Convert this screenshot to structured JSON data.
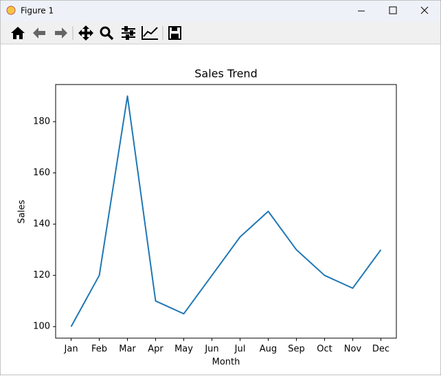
{
  "window": {
    "title": "Figure 1"
  },
  "chart_data": {
    "type": "line",
    "title": "Sales Trend",
    "x_label": "Month",
    "y_label": "Sales",
    "categories": [
      "Jan",
      "Feb",
      "Mar",
      "Apr",
      "May",
      "Jun",
      "Jul",
      "Aug",
      "Sep",
      "Oct",
      "Nov",
      "Dec"
    ],
    "values": [
      100,
      120,
      190,
      110,
      105,
      120,
      135,
      145,
      130,
      120,
      115,
      130
    ],
    "color": "#1f77b4",
    "ylim": [
      95.5,
      194.5
    ],
    "yticks": [
      100,
      120,
      140,
      160,
      180
    ],
    "grid": false
  }
}
